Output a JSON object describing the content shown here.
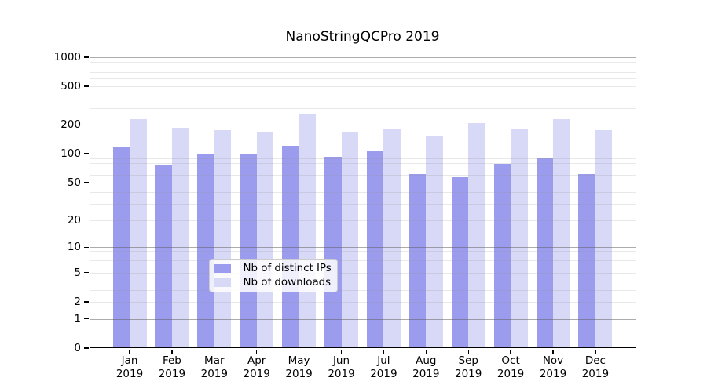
{
  "chart_data": {
    "type": "bar",
    "title": "NanoStringQCPro 2019",
    "months": [
      "Jan",
      "Feb",
      "Mar",
      "Apr",
      "May",
      "Jun",
      "Jul",
      "Aug",
      "Sep",
      "Oct",
      "Nov",
      "Dec"
    ],
    "year": "2019",
    "series": [
      {
        "name": "Nb of distinct IPs",
        "color": "#9c9cee",
        "values": [
          116,
          76,
          100,
          100,
          121,
          93,
          109,
          61,
          57,
          79,
          90,
          62
        ]
      },
      {
        "name": "Nb of downloads",
        "color": "#d8d8f7",
        "values": [
          229,
          188,
          175,
          167,
          258,
          166,
          181,
          152,
          210,
          181,
          231,
          177
        ]
      }
    ],
    "y_ticks": [
      1000,
      500,
      200,
      100,
      50,
      20,
      10,
      5,
      2,
      1,
      0
    ],
    "y_scale": "log(1+x)",
    "ylim": [
      0,
      1240
    ],
    "grid": "horizontal major+minor log gridlines drawn over bars",
    "legend_position": "lower center inside plot",
    "colors": {
      "axis": "#000000",
      "grid_major": "#b3b3b3",
      "grid_minor": "#e6e6e6",
      "background": "#ffffff"
    }
  }
}
